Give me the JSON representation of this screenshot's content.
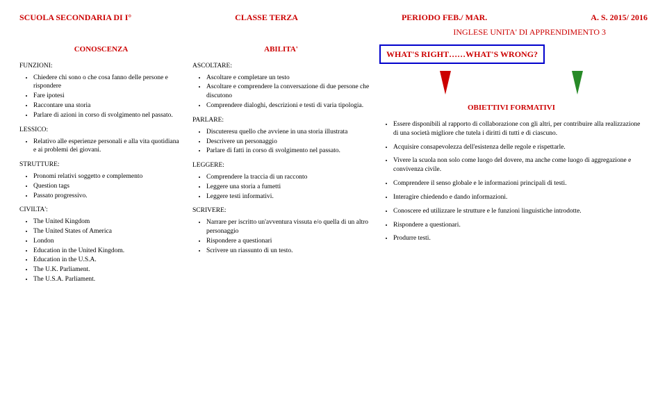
{
  "header": {
    "left": "SCUOLA SECONDARIA DI I°",
    "center": "CLASSE TERZA",
    "right1": "PERIODO  FEB./ MAR.",
    "right2": "A. S.  2015/ 2016",
    "sub": "INGLESE UNITA' DI APPRENDIMENTO  3"
  },
  "col1": {
    "title": "CONOSCENZA",
    "funzioni_label": "FUNZIONI:",
    "funzioni": [
      "Chiedere chi sono o che cosa fanno delle persone e rispondere",
      "Fare ipotesi",
      "Raccontare una storia",
      "Parlare di azioni in corso di svolgimento nel passato."
    ],
    "lessico_label": "LESSICO:",
    "lessico": [
      "Relativo alle esperienze personali e alla vita quotidiana e ai  problemi dei giovani."
    ],
    "strutture_label": "STRUTTURE:",
    "strutture": [
      "Pronomi relativi soggetto e complemento",
      "Question tags",
      "Passato progressivo."
    ],
    "civilta_label": "CIVILTA':",
    "civilta": [
      "The United Kingdom",
      "The United States of America",
      "London",
      "Education in the United Kingdom.",
      "Education in the U.S.A.",
      "The U.K. Parliament.",
      "The U.S.A. Parliament."
    ]
  },
  "col2": {
    "title": "ABILITA'",
    "ascoltare_label": "ASCOLTARE:",
    "ascoltare": [
      "Ascoltare e completare un testo",
      "Ascoltare e comprendere la conversazione di due persone che discutono",
      "Comprendere dialoghi, descrizioni e testi di varia tipologia."
    ],
    "parlare_label": "PARLARE:",
    "parlare": [
      "Discuteresu quello che avviene in una storia illustrata",
      "Descrivere un personaggio",
      "Parlare di fatti in corso di svolgimento nel passato."
    ],
    "leggere_label": "LEGGERE:",
    "leggere": [
      "Comprendere la traccia di un racconto",
      "Leggere una storia a fumetti",
      "Leggere testi informativi."
    ],
    "scrivere_label": "SCRIVERE:",
    "scrivere": [
      "Narrare per iscritto un'avventura vissuta e/o quella di un altro personaggio",
      "Rispondere a questionari",
      "Scrivere un riassunto di un testo."
    ]
  },
  "col3": {
    "topbox": "WHAT'S  RIGHT……WHAT'S WRONG?",
    "obj_title": "OBIETTIVI  FORMATIVI",
    "objectives": [
      "Essere disponibili al rapporto di collaborazione con  gli altri, per contribuire alla realizzazione di una società migliore che  tutela i diritti di tutti e di ciascuno.",
      "Acquisire consapevolezza dell'esistenza delle regole e rispettarle.",
      "Vivere la scuola non solo come luogo del dovere, ma anche come luogo di aggregazione e convivenza civile.",
      "Comprendere il senso globale e le informazioni principali di testi.",
      "Interagire chiedendo e dando informazioni.",
      "Conoscere ed utilizzare le strutture e le funzioni linguistiche introdotte.",
      "Rispondere a questionari.",
      "Produrre testi."
    ]
  }
}
